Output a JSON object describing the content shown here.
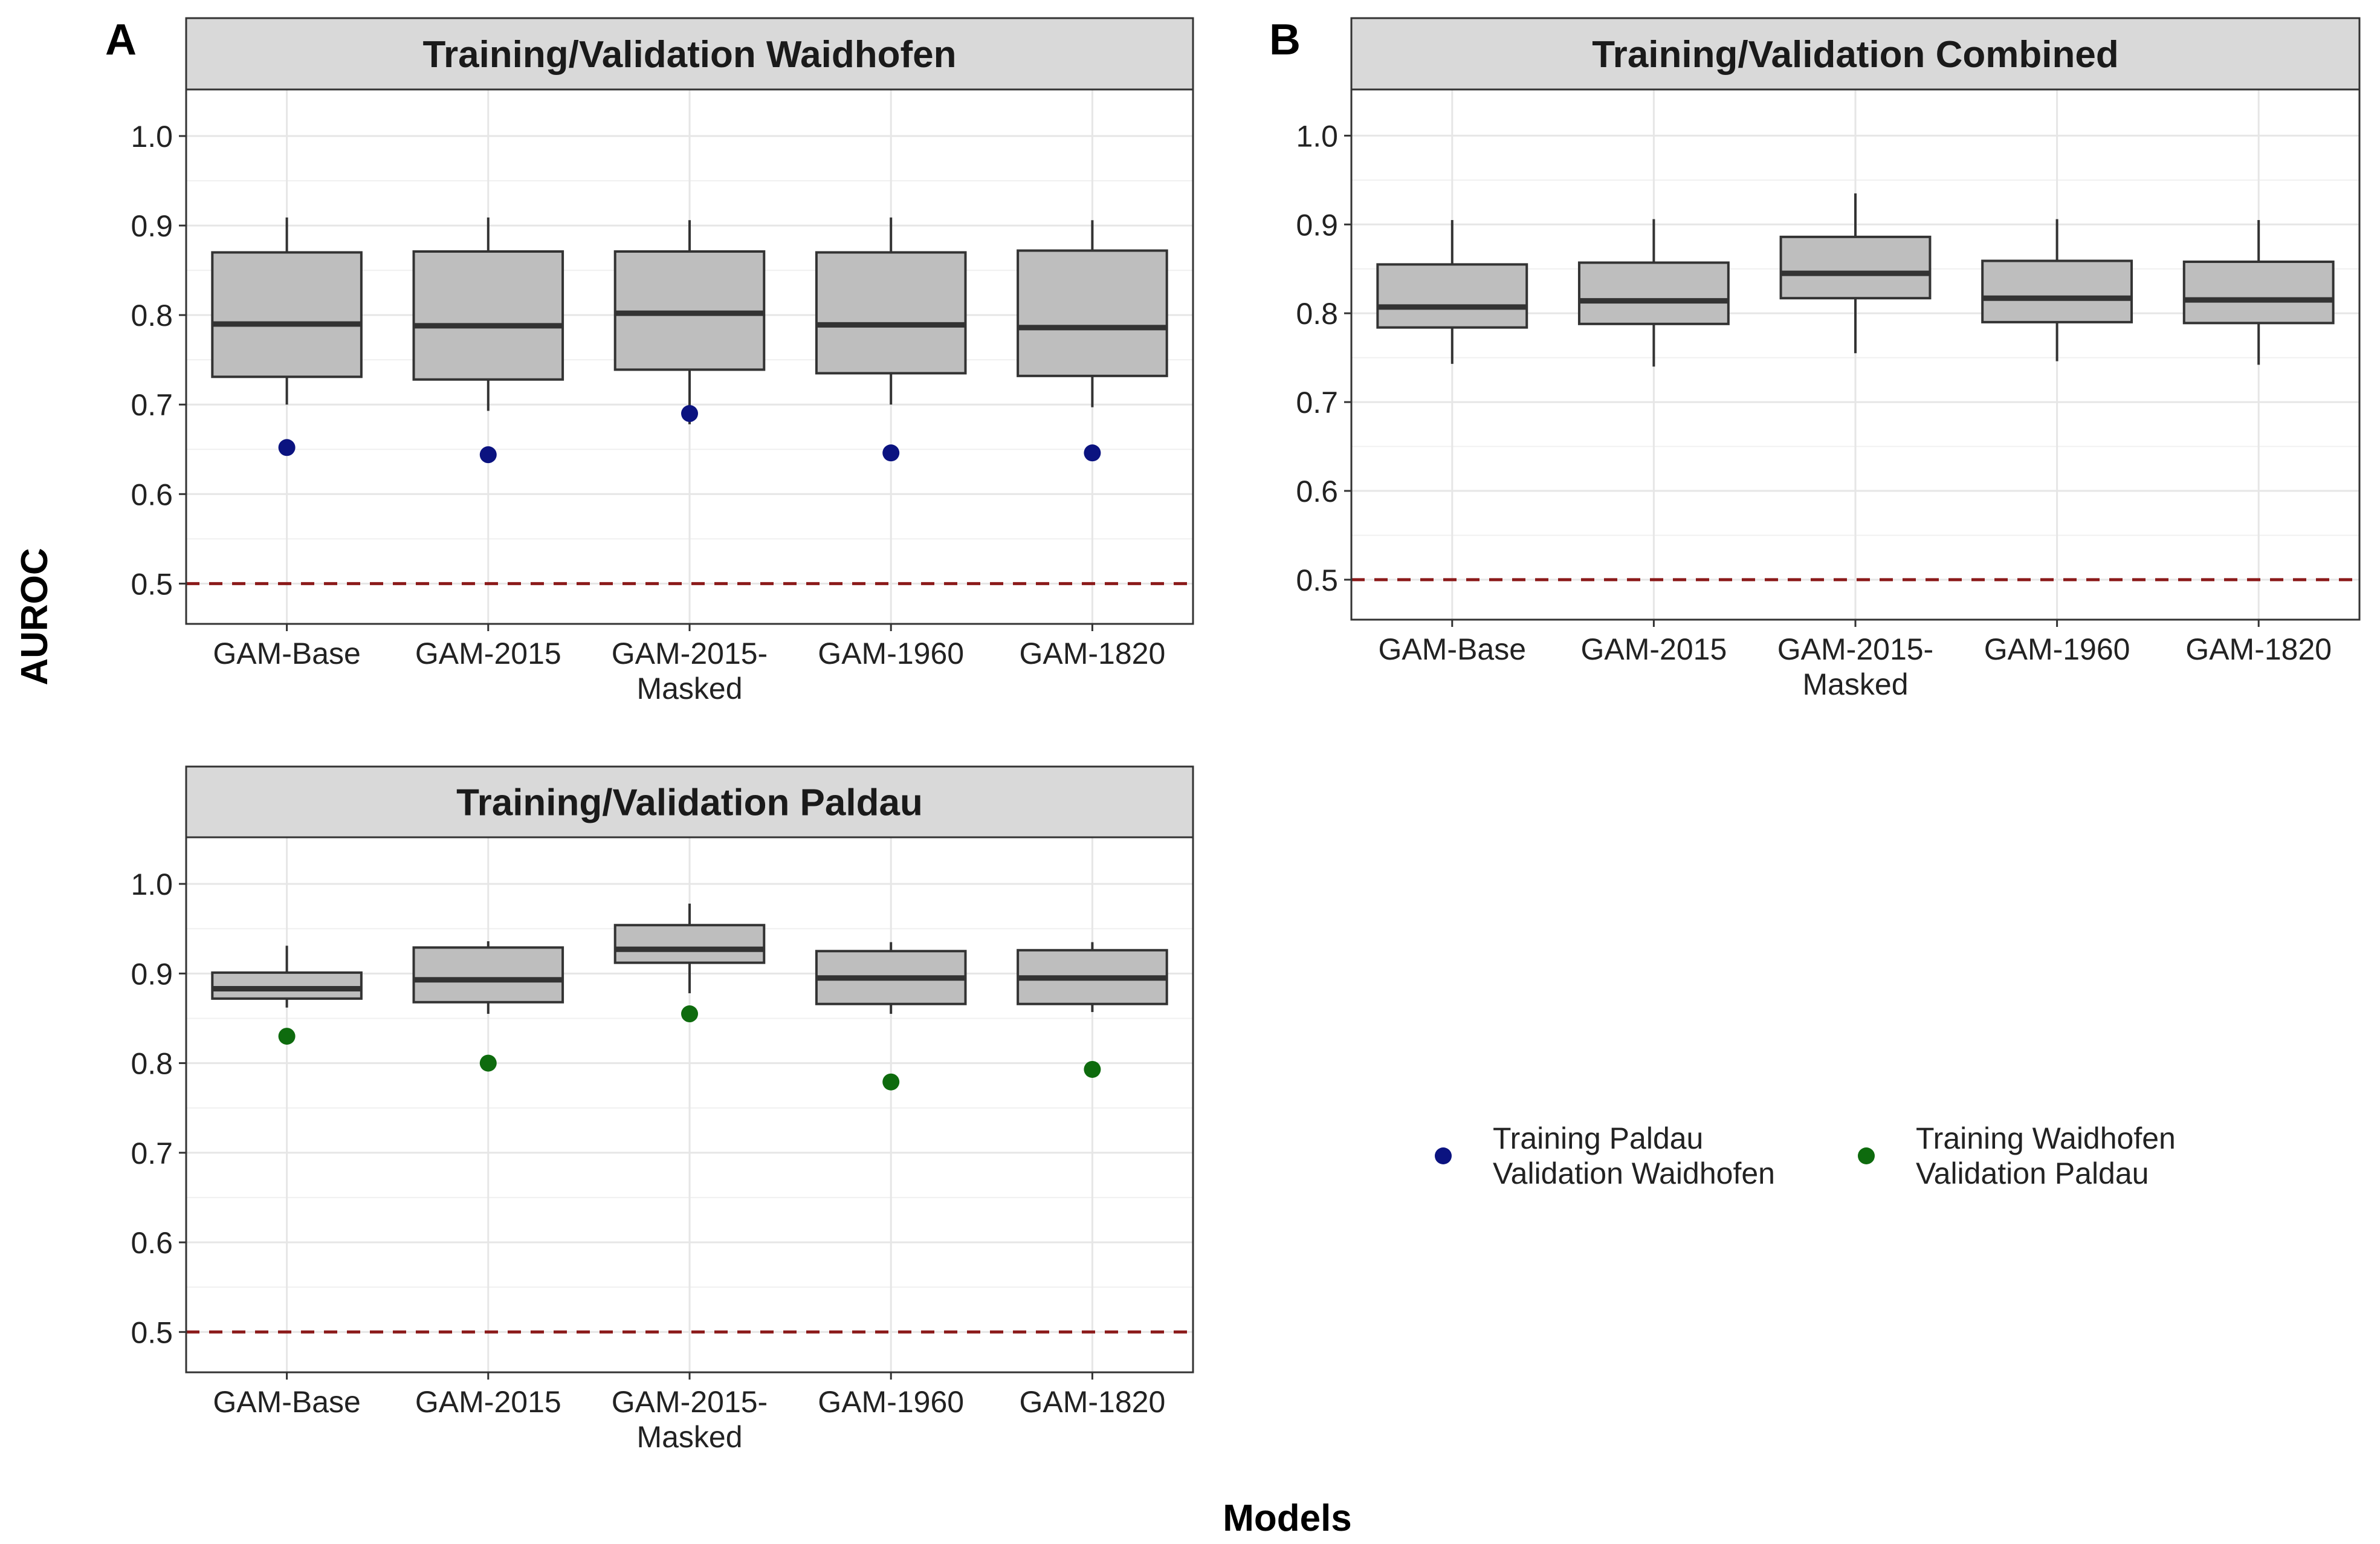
{
  "figure": {
    "y_axis_title": "AUROC",
    "x_axis_title": "Models"
  },
  "legend": {
    "entries": [
      {
        "line1": "Training Paldau",
        "line2": "Validation Waidhofen",
        "color": "#0b1380"
      },
      {
        "line1": "Training Waidhofen",
        "line2": "Validation Paldau",
        "color": "#0e6b0e"
      }
    ]
  },
  "chart_data": [
    {
      "type": "boxplot",
      "panel_label": "A",
      "title": "Training/Validation Waidhofen",
      "categories": [
        {
          "line1": "GAM-Base",
          "line2": ""
        },
        {
          "line1": "GAM-2015",
          "line2": ""
        },
        {
          "line1": "GAM-2015-",
          "line2": "Masked"
        },
        {
          "line1": "GAM-1960",
          "line2": ""
        },
        {
          "line1": "GAM-1820",
          "line2": ""
        }
      ],
      "ylim": [
        0.455,
        1.052
      ],
      "yticks": [
        "0.5",
        "0.6",
        "0.7",
        "0.8",
        "0.9",
        "1.0"
      ],
      "reference_line": 0.5,
      "reference_color": "#8b1a1a",
      "box_color": "#bebebe",
      "boxes": [
        {
          "low": 0.7,
          "q1": 0.731,
          "median": 0.79,
          "q3": 0.87,
          "high": 0.909
        },
        {
          "low": 0.693,
          "q1": 0.728,
          "median": 0.788,
          "q3": 0.871,
          "high": 0.909
        },
        {
          "low": 0.678,
          "q1": 0.739,
          "median": 0.802,
          "q3": 0.871,
          "high": 0.906
        },
        {
          "low": 0.7,
          "q1": 0.735,
          "median": 0.789,
          "q3": 0.87,
          "high": 0.909
        },
        {
          "low": 0.697,
          "q1": 0.732,
          "median": 0.786,
          "q3": 0.872,
          "high": 0.906
        }
      ],
      "points": {
        "series": "Training Paldau Validation Waidhofen",
        "color": "#0b1380",
        "values": [
          0.652,
          0.644,
          0.69,
          0.646,
          0.646
        ]
      }
    },
    {
      "type": "boxplot",
      "panel_label": "B",
      "title": "Training/Validation Combined",
      "categories": [
        {
          "line1": "GAM-Base",
          "line2": ""
        },
        {
          "line1": "GAM-2015",
          "line2": ""
        },
        {
          "line1": "GAM-2015-",
          "line2": "Masked"
        },
        {
          "line1": "GAM-1960",
          "line2": ""
        },
        {
          "line1": "GAM-1820",
          "line2": ""
        }
      ],
      "ylim": [
        0.455,
        1.052
      ],
      "yticks": [
        "0.5",
        "0.6",
        "0.7",
        "0.8",
        "0.9",
        "1.0"
      ],
      "reference_line": 0.5,
      "reference_color": "#8b1a1a",
      "box_color": "#bebebe",
      "boxes": [
        {
          "low": 0.743,
          "q1": 0.784,
          "median": 0.807,
          "q3": 0.855,
          "high": 0.905
        },
        {
          "low": 0.74,
          "q1": 0.788,
          "median": 0.814,
          "q3": 0.857,
          "high": 0.906
        },
        {
          "low": 0.755,
          "q1": 0.817,
          "median": 0.845,
          "q3": 0.886,
          "high": 0.935
        },
        {
          "low": 0.746,
          "q1": 0.79,
          "median": 0.817,
          "q3": 0.859,
          "high": 0.906
        },
        {
          "low": 0.742,
          "q1": 0.789,
          "median": 0.815,
          "q3": 0.858,
          "high": 0.905
        }
      ],
      "points": null
    },
    {
      "type": "boxplot",
      "panel_label": "",
      "title": "Training/Validation Paldau",
      "categories": [
        {
          "line1": "GAM-Base",
          "line2": ""
        },
        {
          "line1": "GAM-2015",
          "line2": ""
        },
        {
          "line1": "GAM-2015-",
          "line2": "Masked"
        },
        {
          "line1": "GAM-1960",
          "line2": ""
        },
        {
          "line1": "GAM-1820",
          "line2": ""
        }
      ],
      "ylim": [
        0.455,
        1.052
      ],
      "yticks": [
        "0.5",
        "0.6",
        "0.7",
        "0.8",
        "0.9",
        "1.0"
      ],
      "reference_line": 0.5,
      "reference_color": "#8b1a1a",
      "box_color": "#bebebe",
      "boxes": [
        {
          "low": 0.862,
          "q1": 0.872,
          "median": 0.883,
          "q3": 0.901,
          "high": 0.931
        },
        {
          "low": 0.855,
          "q1": 0.868,
          "median": 0.893,
          "q3": 0.929,
          "high": 0.936
        },
        {
          "low": 0.878,
          "q1": 0.912,
          "median": 0.927,
          "q3": 0.954,
          "high": 0.978
        },
        {
          "low": 0.855,
          "q1": 0.866,
          "median": 0.895,
          "q3": 0.925,
          "high": 0.935
        },
        {
          "low": 0.857,
          "q1": 0.866,
          "median": 0.895,
          "q3": 0.926,
          "high": 0.935
        }
      ],
      "points": {
        "series": "Training Waidhofen Validation Paldau",
        "color": "#0e6b0e",
        "values": [
          0.83,
          0.8,
          0.855,
          0.779,
          0.793
        ]
      }
    }
  ]
}
